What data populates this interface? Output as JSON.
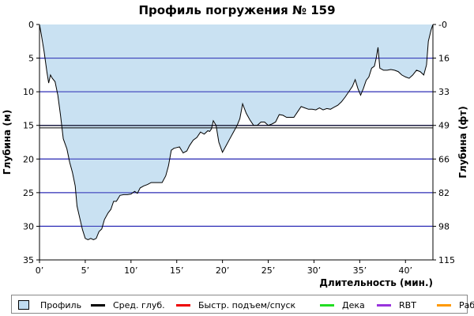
{
  "chart_data": {
    "type": "area",
    "title": "Профиль погружения № 159",
    "xlabel": "Длительность (мин.)",
    "ylabel_left": "Глубина (м)",
    "ylabel_right": "Глубина (фт)",
    "xlim": [
      0,
      43
    ],
    "ylim_left": [
      0,
      35
    ],
    "ylim_right": [
      0,
      115
    ],
    "y_inverted": true,
    "x_ticks": [
      "0’",
      "5’",
      "10’",
      "15’",
      "20’",
      "25’",
      "30’",
      "35’",
      "40’"
    ],
    "x_tick_values": [
      0,
      5,
      10,
      15,
      20,
      25,
      30,
      35,
      40
    ],
    "y_left_ticks": [
      "0",
      "5",
      "10",
      "15",
      "20",
      "25",
      "30",
      "35"
    ],
    "y_left_tick_values": [
      0,
      5,
      10,
      15,
      20,
      25,
      30,
      35
    ],
    "y_right_ticks": [
      "0",
      "16",
      "33",
      "49",
      "66",
      "82",
      "98",
      "115"
    ],
    "average_depth": 15.2,
    "profile": {
      "name": "Профиль",
      "fill_color": "#c0dcf0",
      "line_color": "#000000",
      "points": [
        [
          0.0,
          0.0
        ],
        [
          0.2,
          1.5
        ],
        [
          0.5,
          4.0
        ],
        [
          0.8,
          7.0
        ],
        [
          1.0,
          8.7
        ],
        [
          1.2,
          7.5
        ],
        [
          1.4,
          8.0
        ],
        [
          1.7,
          8.5
        ],
        [
          2.0,
          10.5
        ],
        [
          2.3,
          13.5
        ],
        [
          2.6,
          17.0
        ],
        [
          3.0,
          18.5
        ],
        [
          3.3,
          20.5
        ],
        [
          3.6,
          22.0
        ],
        [
          3.9,
          24.0
        ],
        [
          4.1,
          27.0
        ],
        [
          4.4,
          28.8
        ],
        [
          4.7,
          30.5
        ],
        [
          5.0,
          31.8
        ],
        [
          5.3,
          32.0
        ],
        [
          5.6,
          31.8
        ],
        [
          5.9,
          32.0
        ],
        [
          6.2,
          31.8
        ],
        [
          6.5,
          30.8
        ],
        [
          6.8,
          30.4
        ],
        [
          7.1,
          29.0
        ],
        [
          7.5,
          28.0
        ],
        [
          7.8,
          27.5
        ],
        [
          8.1,
          26.3
        ],
        [
          8.4,
          26.3
        ],
        [
          8.8,
          25.4
        ],
        [
          9.2,
          25.3
        ],
        [
          9.6,
          25.3
        ],
        [
          10.0,
          25.2
        ],
        [
          10.4,
          24.8
        ],
        [
          10.7,
          25.1
        ],
        [
          11.0,
          24.3
        ],
        [
          11.4,
          24.0
        ],
        [
          11.8,
          23.8
        ],
        [
          12.2,
          23.5
        ],
        [
          12.6,
          23.5
        ],
        [
          13.0,
          23.5
        ],
        [
          13.4,
          23.5
        ],
        [
          13.8,
          22.5
        ],
        [
          14.1,
          21.0
        ],
        [
          14.4,
          18.7
        ],
        [
          14.7,
          18.4
        ],
        [
          15.0,
          18.3
        ],
        [
          15.3,
          18.2
        ],
        [
          15.7,
          19.1
        ],
        [
          16.1,
          18.8
        ],
        [
          16.4,
          18.0
        ],
        [
          16.8,
          17.2
        ],
        [
          17.2,
          16.8
        ],
        [
          17.6,
          16.0
        ],
        [
          18.0,
          16.3
        ],
        [
          18.4,
          15.8
        ],
        [
          18.6,
          15.9
        ],
        [
          18.8,
          15.5
        ],
        [
          19.0,
          14.3
        ],
        [
          19.3,
          15.0
        ],
        [
          19.6,
          17.5
        ],
        [
          20.0,
          19.0
        ],
        [
          20.4,
          18.0
        ],
        [
          20.8,
          17.0
        ],
        [
          21.2,
          16.0
        ],
        [
          21.6,
          15.0
        ],
        [
          21.9,
          14.0
        ],
        [
          22.2,
          11.8
        ],
        [
          22.6,
          13.2
        ],
        [
          23.0,
          14.2
        ],
        [
          23.4,
          15.0
        ],
        [
          23.8,
          15.0
        ],
        [
          24.2,
          14.5
        ],
        [
          24.6,
          14.5
        ],
        [
          25.0,
          15.0
        ],
        [
          25.4,
          14.8
        ],
        [
          25.8,
          14.5
        ],
        [
          26.2,
          13.4
        ],
        [
          26.6,
          13.5
        ],
        [
          27.0,
          13.8
        ],
        [
          27.4,
          13.8
        ],
        [
          27.8,
          13.8
        ],
        [
          28.2,
          13.0
        ],
        [
          28.6,
          12.2
        ],
        [
          29.0,
          12.4
        ],
        [
          29.4,
          12.6
        ],
        [
          29.8,
          12.6
        ],
        [
          30.2,
          12.7
        ],
        [
          30.6,
          12.4
        ],
        [
          31.0,
          12.7
        ],
        [
          31.4,
          12.5
        ],
        [
          31.8,
          12.6
        ],
        [
          32.2,
          12.3
        ],
        [
          32.6,
          12.0
        ],
        [
          33.0,
          11.5
        ],
        [
          33.4,
          10.8
        ],
        [
          33.8,
          10.0
        ],
        [
          34.2,
          9.2
        ],
        [
          34.5,
          8.2
        ],
        [
          34.8,
          9.5
        ],
        [
          35.1,
          10.5
        ],
        [
          35.4,
          9.5
        ],
        [
          35.7,
          8.3
        ],
        [
          36.0,
          7.8
        ],
        [
          36.3,
          6.5
        ],
        [
          36.6,
          6.2
        ],
        [
          36.8,
          5.0
        ],
        [
          37.0,
          3.4
        ],
        [
          37.2,
          6.5
        ],
        [
          37.6,
          6.8
        ],
        [
          38.0,
          6.8
        ],
        [
          38.4,
          6.7
        ],
        [
          38.8,
          6.8
        ],
        [
          39.2,
          7.0
        ],
        [
          39.6,
          7.5
        ],
        [
          40.0,
          7.8
        ],
        [
          40.4,
          8.0
        ],
        [
          40.8,
          7.5
        ],
        [
          41.2,
          6.8
        ],
        [
          41.6,
          7.0
        ],
        [
          42.0,
          7.5
        ],
        [
          42.3,
          6.0
        ],
        [
          42.5,
          2.5
        ],
        [
          42.8,
          0.8
        ],
        [
          43.0,
          0.0
        ]
      ]
    },
    "legend": [
      {
        "label": "Профиль",
        "kind": "box",
        "color": "#c0dcf0"
      },
      {
        "label": "Сред. глуб.",
        "kind": "line",
        "color": "#000000"
      },
      {
        "label": "Быстр. подъем/спуск",
        "kind": "line",
        "color": "#ee0000"
      },
      {
        "label": "Дека",
        "kind": "line",
        "color": "#22dd22"
      },
      {
        "label": "RBT",
        "kind": "line",
        "color": "#9933dd"
      },
      {
        "label": "Раб.",
        "kind": "line",
        "color": "#ff9900"
      }
    ],
    "colors": {
      "gridline": "#1f1fb0",
      "plot_background": "#ffffff"
    },
    "grid": true,
    "legend_position": "bottom"
  }
}
